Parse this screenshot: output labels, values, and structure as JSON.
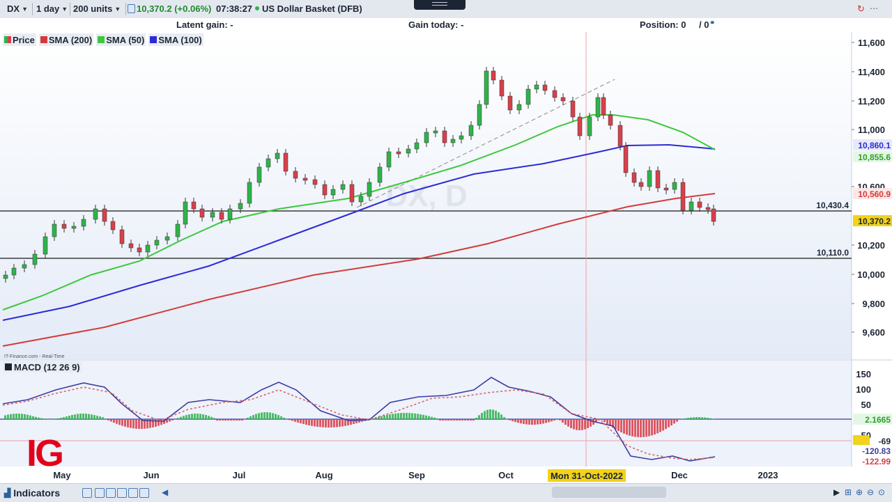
{
  "toolbar": {
    "symbol": "DX",
    "interval": "1 day",
    "size": "200 units",
    "quote": "10,370.2 (+0.06%)",
    "time": "07:38:27",
    "instrument": "US Dollar Basket (DFB)"
  },
  "infobar": {
    "latent_gain": "Latent gain: -",
    "gain_today": "Gain today: -",
    "position_label": "Position: 0",
    "position_value": "/ 0"
  },
  "legend": {
    "price": "Price",
    "sma200": "SMA (200)",
    "sma50": "SMA (50)",
    "sma100": "SMA (100)"
  },
  "colors": {
    "sma200": "#d23b3b",
    "sma50": "#3cc83c",
    "sma100": "#2b2bd8",
    "up": "#2fb34a",
    "down": "#d8404a",
    "macd_line": "#3c3ca0",
    "signal_line": "#e06060",
    "last_price": "#f2d21a"
  },
  "watermark": "DX, D",
  "feed": "IT-Finance.com - Real-Time",
  "price_axis": [
    "11,600",
    "11,400",
    "11,200",
    "11,000",
    "10,600",
    "10,200",
    "10,000",
    "9,800",
    "9,600"
  ],
  "price_tags": {
    "sma100": "10,860.1",
    "sma50": "10,855.6",
    "sma200": "10,560.9",
    "last": "10,370.2",
    "level_upper": "10,430.4",
    "level_lower": "10,110.0"
  },
  "macd": {
    "label": "MACD (12 26 9)",
    "axis": [
      "150",
      "100",
      "50",
      "50"
    ],
    "tags": {
      "hist": "2.1665",
      "level": "-69",
      "macd": "-120.83",
      "signal": "-122.99"
    }
  },
  "time_axis": {
    "labels": [
      "May",
      "Jun",
      "Jul",
      "Aug",
      "Sep",
      "Oct",
      "Dec",
      "2023"
    ],
    "crosshair": "Mon 31-Oct-2022"
  },
  "bottom": {
    "indicators": "Indicators"
  },
  "logo": "IG",
  "chart_data": {
    "type": "candlestick",
    "instrument": "US Dollar Basket (DFB)",
    "timeframe": "1 day",
    "y_range": [
      9500,
      11650
    ],
    "last": 10370.2,
    "levels": [
      10430.4,
      10110.0
    ],
    "sma200": {
      "start": 9510,
      "end": 10560.9
    },
    "sma100": {
      "start": 9820,
      "end": 10860.1
    },
    "sma50_end": 10855.6,
    "macd": {
      "macd": -120.83,
      "signal": -122.99,
      "hist": 2.1665
    }
  }
}
